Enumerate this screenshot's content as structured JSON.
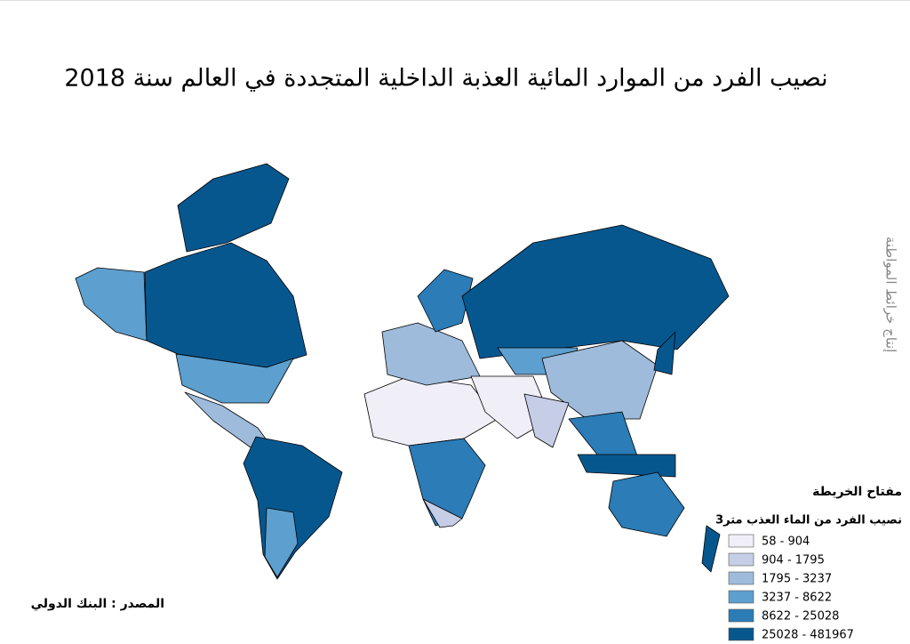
{
  "title": "نصيب الفرد من الموارد المائية العذبة الداخلية المتجددة في العالم سنة 2018",
  "legend": {
    "title": "مفتاح الخريطة",
    "subtitle": "نصيب الفرد من الماء العذب متر3",
    "items": [
      {
        "label": "58 - 904",
        "color": "#f0eef6"
      },
      {
        "label": "904 - 1795",
        "color": "#c6cde6"
      },
      {
        "label": "1795 - 3237",
        "color": "#9ebbdb"
      },
      {
        "label": "3237 - 8622",
        "color": "#5d9fcf"
      },
      {
        "label": "8622 - 25028",
        "color": "#2b7cb7"
      },
      {
        "label": "25028 - 481967",
        "color": "#07578f"
      }
    ]
  },
  "source": "المصدر : البنك الدولي",
  "credit": "إنتاج خرائط المواطنة"
}
